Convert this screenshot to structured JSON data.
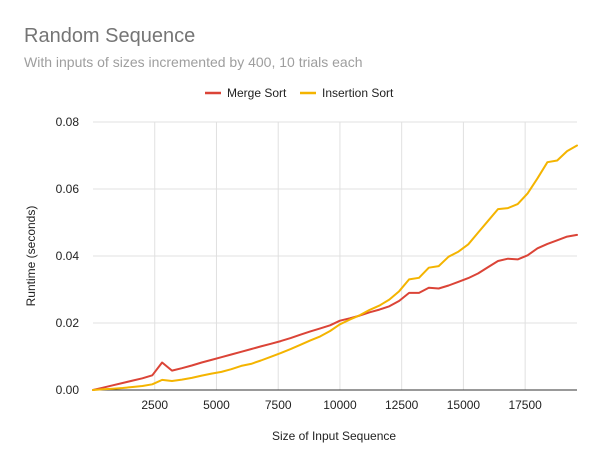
{
  "chart_data": {
    "type": "line",
    "title": "Random Sequence",
    "subtitle": "With inputs of sizes incremented by 400, 10 trials each",
    "xlabel": "Size of Input Sequence",
    "ylabel": "Runtime (seconds)",
    "xlim": [
      0,
      19600
    ],
    "ylim": [
      0,
      0.08
    ],
    "x_ticks": [
      "2500",
      "5000",
      "7500",
      "10000",
      "12500",
      "15000",
      "17500"
    ],
    "y_ticks": [
      "0.00",
      "0.02",
      "0.04",
      "0.06",
      "0.08"
    ],
    "grid": true,
    "legend_position": "top",
    "x": [
      0,
      400,
      800,
      1200,
      1600,
      2000,
      2400,
      2800,
      3200,
      3600,
      4000,
      4400,
      4800,
      5200,
      5600,
      6000,
      6400,
      6800,
      7200,
      7600,
      8000,
      8400,
      8800,
      9200,
      9600,
      10000,
      10400,
      10800,
      11200,
      11600,
      12000,
      12400,
      12800,
      13200,
      13600,
      14000,
      14400,
      14800,
      15200,
      15600,
      16000,
      16400,
      16800,
      17200,
      17600,
      18000,
      18400,
      18800,
      19200,
      19600
    ],
    "series": [
      {
        "name": "Merge Sort",
        "color": "#db4437",
        "values": [
          0.0,
          0.0007,
          0.0014,
          0.0021,
          0.0028,
          0.0035,
          0.0044,
          0.0082,
          0.0058,
          0.0065,
          0.0073,
          0.0082,
          0.009,
          0.0098,
          0.0106,
          0.0114,
          0.0122,
          0.013,
          0.0138,
          0.0146,
          0.0155,
          0.0165,
          0.0175,
          0.0184,
          0.0193,
          0.0207,
          0.0214,
          0.0222,
          0.0232,
          0.024,
          0.025,
          0.0266,
          0.029,
          0.029,
          0.0305,
          0.0303,
          0.0312,
          0.0323,
          0.0334,
          0.0348,
          0.0367,
          0.0385,
          0.0392,
          0.039,
          0.0402,
          0.0423,
          0.0436,
          0.0447,
          0.0458,
          0.0463
        ]
      },
      {
        "name": "Insertion Sort",
        "color": "#f4b400",
        "values": [
          0.0,
          0.0002,
          0.0004,
          0.0006,
          0.0009,
          0.0012,
          0.0017,
          0.003,
          0.0027,
          0.0031,
          0.0036,
          0.0043,
          0.0049,
          0.0054,
          0.0062,
          0.0072,
          0.0078,
          0.0088,
          0.0099,
          0.011,
          0.0122,
          0.0135,
          0.0148,
          0.016,
          0.0176,
          0.0196,
          0.021,
          0.0223,
          0.0239,
          0.0252,
          0.027,
          0.0295,
          0.033,
          0.0335,
          0.0365,
          0.037,
          0.0398,
          0.0413,
          0.0435,
          0.047,
          0.0505,
          0.054,
          0.0543,
          0.0555,
          0.0587,
          0.0632,
          0.068,
          0.0685,
          0.0713,
          0.073
        ]
      }
    ]
  }
}
